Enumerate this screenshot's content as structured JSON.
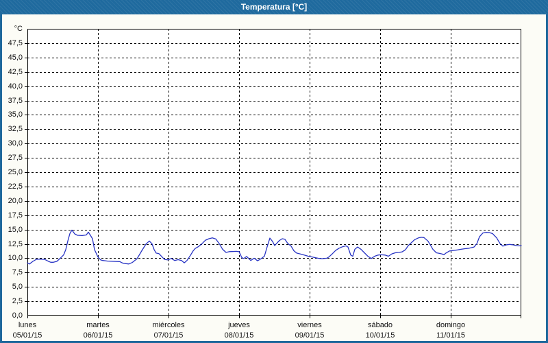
{
  "title": "Temperatura [°C]",
  "colors": {
    "titlebar": "#1f6a9e",
    "frame": "#1e689c",
    "panel_bg": "#fcfcf6",
    "plot_bg": "#ffffff",
    "grid": "#000000",
    "axis": "#000000",
    "series_line": "#2733c4",
    "title_text": "#ffffff",
    "tick_text": "#111111"
  },
  "chart_data": {
    "type": "line",
    "title": "Temperatura [°C]",
    "y_unit_label": "°C",
    "ylabel": "",
    "xlabel": "",
    "ylim": [
      0,
      50
    ],
    "y_tick_step": 2.5,
    "y_tick_labels": [
      "0,0",
      "2,5",
      "5,0",
      "7,5",
      "10,0",
      "12,5",
      "15,0",
      "17,5",
      "20,0",
      "22,5",
      "25,0",
      "27,5",
      "30,0",
      "32,5",
      "35,0",
      "37,5",
      "40,0",
      "42,5",
      "45,0",
      "47,5"
    ],
    "x_days": 7,
    "x_ticks": [
      {
        "day": "lunes",
        "date": "05/01/15"
      },
      {
        "day": "martes",
        "date": "06/01/15"
      },
      {
        "day": "miércoles",
        "date": "07/01/15"
      },
      {
        "day": "jueves",
        "date": "08/01/15"
      },
      {
        "day": "viernes",
        "date": "09/01/15"
      },
      {
        "day": "sábado",
        "date": "10/01/15"
      },
      {
        "day": "domingo",
        "date": "11/01/15"
      }
    ],
    "grid": "dashed",
    "legend": "none",
    "series": [
      {
        "name": "Temperatura",
        "color": "#2733c4",
        "points": [
          [
            0.0,
            9.2
          ],
          [
            0.029,
            9.0
          ],
          [
            0.078,
            9.45
          ],
          [
            0.126,
            9.8
          ],
          [
            0.175,
            9.85
          ],
          [
            0.243,
            9.8
          ],
          [
            0.291,
            9.5
          ],
          [
            0.33,
            9.3
          ],
          [
            0.369,
            9.3
          ],
          [
            0.417,
            9.45
          ],
          [
            0.466,
            10.0
          ],
          [
            0.515,
            10.6
          ],
          [
            0.544,
            11.5
          ],
          [
            0.573,
            13.0
          ],
          [
            0.602,
            14.3
          ],
          [
            0.631,
            14.9
          ],
          [
            0.67,
            14.25
          ],
          [
            0.709,
            14.0
          ],
          [
            0.777,
            13.95
          ],
          [
            0.835,
            14.05
          ],
          [
            0.864,
            14.55
          ],
          [
            0.893,
            14.0
          ],
          [
            0.922,
            13.4
          ],
          [
            0.951,
            11.5
          ],
          [
            1.0,
            10.2
          ],
          [
            1.039,
            9.7
          ],
          [
            1.068,
            9.6
          ],
          [
            1.136,
            9.5
          ],
          [
            1.214,
            9.45
          ],
          [
            1.311,
            9.4
          ],
          [
            1.359,
            9.1
          ],
          [
            1.437,
            9.0
          ],
          [
            1.485,
            9.25
          ],
          [
            1.553,
            9.9
          ],
          [
            1.621,
            11.3
          ],
          [
            1.68,
            12.45
          ],
          [
            1.728,
            13.0
          ],
          [
            1.767,
            12.5
          ],
          [
            1.796,
            11.5
          ],
          [
            1.825,
            10.9
          ],
          [
            1.864,
            10.8
          ],
          [
            1.903,
            10.3
          ],
          [
            1.942,
            9.8
          ],
          [
            1.99,
            9.7
          ],
          [
            2.039,
            9.95
          ],
          [
            2.087,
            9.6
          ],
          [
            2.136,
            9.75
          ],
          [
            2.184,
            9.6
          ],
          [
            2.223,
            9.2
          ],
          [
            2.262,
            9.6
          ],
          [
            2.311,
            10.5
          ],
          [
            2.35,
            11.3
          ],
          [
            2.379,
            11.7
          ],
          [
            2.427,
            12.05
          ],
          [
            2.476,
            12.55
          ],
          [
            2.524,
            13.15
          ],
          [
            2.573,
            13.4
          ],
          [
            2.621,
            13.55
          ],
          [
            2.67,
            13.35
          ],
          [
            2.718,
            12.55
          ],
          [
            2.767,
            11.55
          ],
          [
            2.816,
            11.0
          ],
          [
            2.864,
            11.15
          ],
          [
            2.961,
            11.2
          ],
          [
            3.0,
            11.15
          ],
          [
            3.039,
            10.1
          ],
          [
            3.068,
            9.95
          ],
          [
            3.107,
            10.3
          ],
          [
            3.165,
            9.6
          ],
          [
            3.214,
            10.0
          ],
          [
            3.262,
            9.55
          ],
          [
            3.311,
            9.9
          ],
          [
            3.359,
            10.35
          ],
          [
            3.398,
            12.0
          ],
          [
            3.437,
            13.5
          ],
          [
            3.476,
            12.9
          ],
          [
            3.505,
            12.2
          ],
          [
            3.534,
            12.6
          ],
          [
            3.573,
            13.1
          ],
          [
            3.612,
            13.4
          ],
          [
            3.65,
            13.3
          ],
          [
            3.689,
            12.6
          ],
          [
            3.738,
            12.1
          ],
          [
            3.777,
            11.3
          ],
          [
            3.816,
            10.9
          ],
          [
            3.864,
            10.75
          ],
          [
            3.922,
            10.55
          ],
          [
            3.981,
            10.35
          ],
          [
            4.058,
            10.15
          ],
          [
            4.117,
            10.0
          ],
          [
            4.175,
            9.9
          ],
          [
            4.243,
            10.0
          ],
          [
            4.272,
            10.2
          ],
          [
            4.32,
            10.75
          ],
          [
            4.369,
            11.35
          ],
          [
            4.417,
            11.75
          ],
          [
            4.466,
            12.0
          ],
          [
            4.515,
            12.15
          ],
          [
            4.544,
            11.95
          ],
          [
            4.583,
            10.55
          ],
          [
            4.612,
            10.35
          ],
          [
            4.641,
            11.55
          ],
          [
            4.68,
            11.95
          ],
          [
            4.728,
            11.55
          ],
          [
            4.777,
            10.95
          ],
          [
            4.825,
            10.35
          ],
          [
            4.874,
            9.95
          ],
          [
            4.922,
            10.35
          ],
          [
            4.971,
            10.55
          ],
          [
            5.019,
            10.6
          ],
          [
            5.068,
            10.55
          ],
          [
            5.117,
            10.35
          ],
          [
            5.165,
            10.75
          ],
          [
            5.214,
            10.95
          ],
          [
            5.262,
            11.0
          ],
          [
            5.311,
            11.1
          ],
          [
            5.359,
            11.5
          ],
          [
            5.398,
            12.2
          ],
          [
            5.485,
            13.2
          ],
          [
            5.544,
            13.55
          ],
          [
            5.583,
            13.65
          ],
          [
            5.621,
            13.6
          ],
          [
            5.68,
            12.95
          ],
          [
            5.748,
            11.55
          ],
          [
            5.796,
            10.95
          ],
          [
            5.835,
            10.85
          ],
          [
            5.874,
            10.75
          ],
          [
            5.903,
            10.6
          ],
          [
            5.932,
            10.9
          ],
          [
            5.981,
            11.25
          ],
          [
            6.039,
            11.35
          ],
          [
            6.097,
            11.45
          ],
          [
            6.146,
            11.55
          ],
          [
            6.194,
            11.65
          ],
          [
            6.262,
            11.75
          ],
          [
            6.33,
            11.95
          ],
          [
            6.369,
            12.5
          ],
          [
            6.408,
            13.75
          ],
          [
            6.456,
            14.4
          ],
          [
            6.505,
            14.5
          ],
          [
            6.553,
            14.45
          ],
          [
            6.592,
            14.3
          ],
          [
            6.65,
            13.55
          ],
          [
            6.699,
            12.55
          ],
          [
            6.738,
            12.1
          ],
          [
            6.796,
            12.35
          ],
          [
            6.835,
            12.4
          ],
          [
            6.874,
            12.35
          ],
          [
            6.913,
            12.25
          ],
          [
            6.961,
            12.15
          ],
          [
            7.0,
            12.2
          ]
        ]
      }
    ]
  }
}
